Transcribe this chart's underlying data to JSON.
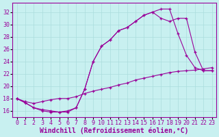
{
  "bg_color": "#c8f0f0",
  "line_color": "#990099",
  "grid_color": "#aadddd",
  "xlabel": "Windchill (Refroidissement éolien,°C)",
  "xlabel_fontsize": 7.0,
  "tick_fontsize": 6.0,
  "xlim": [
    -0.5,
    23.5
  ],
  "ylim": [
    15.0,
    33.5
  ],
  "yticks": [
    16,
    18,
    20,
    22,
    24,
    26,
    28,
    30,
    32
  ],
  "xticks": [
    0,
    1,
    2,
    3,
    4,
    5,
    6,
    7,
    8,
    9,
    10,
    11,
    12,
    13,
    14,
    15,
    16,
    17,
    18,
    19,
    20,
    21,
    22,
    23
  ],
  "line1_x": [
    0,
    1,
    2,
    3,
    4,
    5,
    6,
    7,
    8,
    9,
    10,
    11,
    12,
    13,
    14,
    15,
    16,
    17,
    18,
    19,
    20,
    21,
    22,
    23
  ],
  "line1_y": [
    18.0,
    17.3,
    16.5,
    16.0,
    15.8,
    15.8,
    15.8,
    16.5,
    19.5,
    24.0,
    26.5,
    27.5,
    29.0,
    29.5,
    30.5,
    31.5,
    32.0,
    32.5,
    32.5,
    28.5,
    25.0,
    23.0,
    22.5,
    22.5
  ],
  "line2_x": [
    0,
    1,
    2,
    3,
    4,
    5,
    6,
    7,
    8,
    9,
    10,
    11,
    12,
    13,
    14,
    15,
    16,
    17,
    18,
    19,
    20,
    21,
    22,
    23
  ],
  "line2_y": [
    18.0,
    17.3,
    16.5,
    16.2,
    16.0,
    15.8,
    16.0,
    16.5,
    19.5,
    24.0,
    26.5,
    27.5,
    29.0,
    29.5,
    30.5,
    31.5,
    32.0,
    31.0,
    30.5,
    31.0,
    31.0,
    25.5,
    22.5,
    22.5
  ],
  "line3_x": [
    0,
    1,
    2,
    3,
    4,
    5,
    6,
    7,
    8,
    9,
    10,
    11,
    12,
    13,
    14,
    15,
    16,
    17,
    18,
    19,
    20,
    21,
    22,
    23
  ],
  "line3_y": [
    18.0,
    17.5,
    17.2,
    17.5,
    17.8,
    18.0,
    18.0,
    18.3,
    18.8,
    19.2,
    19.5,
    19.8,
    20.2,
    20.5,
    21.0,
    21.3,
    21.6,
    21.9,
    22.2,
    22.4,
    22.5,
    22.6,
    22.8,
    23.0
  ]
}
